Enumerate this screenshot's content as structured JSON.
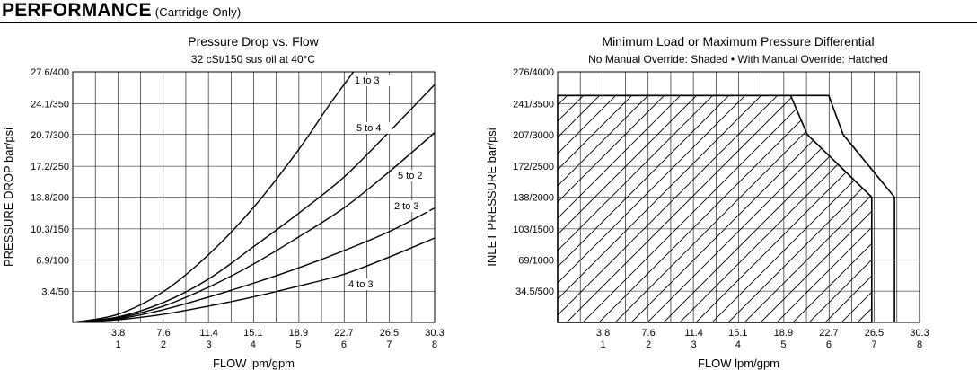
{
  "header": {
    "title": "PERFORMANCE",
    "subtitle": "(Cartridge Only)"
  },
  "chart_data": [
    {
      "type": "line",
      "title": "Pressure Drop vs. Flow",
      "subtitle": "32 cSt/150 sus oil at 40°C",
      "xlabel": "FLOW lpm/gpm",
      "ylabel": "PRESSURE DROP bar/psi",
      "x_unit": "lpm",
      "xlim": [
        0,
        30.3
      ],
      "ylim": [
        0,
        27.6
      ],
      "xticks": [
        {
          "value": 3.8,
          "top": "3.8",
          "bottom": "1"
        },
        {
          "value": 7.6,
          "top": "7.6",
          "bottom": "2"
        },
        {
          "value": 11.4,
          "top": "11.4",
          "bottom": "3"
        },
        {
          "value": 15.1,
          "top": "15.1",
          "bottom": "4"
        },
        {
          "value": 18.9,
          "top": "18.9",
          "bottom": "5"
        },
        {
          "value": 22.7,
          "top": "22.7",
          "bottom": "6"
        },
        {
          "value": 26.5,
          "top": "26.5",
          "bottom": "7"
        },
        {
          "value": 30.3,
          "top": "30.3",
          "bottom": "8"
        }
      ],
      "yticks": [
        {
          "value": 3.4,
          "label": "3.4/50"
        },
        {
          "value": 6.9,
          "label": "6.9/100"
        },
        {
          "value": 10.3,
          "label": "10.3/150"
        },
        {
          "value": 13.8,
          "label": "13.8/200"
        },
        {
          "value": 17.2,
          "label": "17.2/250"
        },
        {
          "value": 20.7,
          "label": "20.7/300"
        },
        {
          "value": 24.1,
          "label": "24.1/350"
        },
        {
          "value": 27.6,
          "label": "27.6/400"
        }
      ],
      "grid": true,
      "series": [
        {
          "name": "1 to 3",
          "x": [
            0,
            3.8,
            7.6,
            11.4,
            15.1,
            18.9,
            21.5,
            23.5
          ],
          "y": [
            0,
            0.9,
            3.4,
            7.5,
            12.6,
            19.0,
            24.0,
            27.6
          ]
        },
        {
          "name": "5 to 4",
          "x": [
            0,
            3.8,
            7.6,
            11.4,
            15.1,
            18.9,
            22.7,
            26.5,
            30.3
          ],
          "y": [
            0,
            0.6,
            2.2,
            4.8,
            8.3,
            12.0,
            16.0,
            21.0,
            26.2
          ]
        },
        {
          "name": "5 to 2",
          "x": [
            0,
            3.8,
            7.6,
            11.4,
            15.1,
            18.9,
            22.7,
            26.5,
            30.3
          ],
          "y": [
            0,
            0.5,
            1.8,
            3.9,
            6.4,
            9.4,
            12.6,
            16.6,
            20.9
          ]
        },
        {
          "name": "2 to 3",
          "x": [
            0,
            3.8,
            7.6,
            11.4,
            15.1,
            18.9,
            22.7,
            26.5,
            30.3
          ],
          "y": [
            0,
            0.4,
            1.4,
            2.8,
            4.3,
            6.0,
            7.9,
            10.0,
            12.6
          ]
        },
        {
          "name": "4 to 3",
          "x": [
            0,
            3.8,
            7.6,
            11.4,
            15.1,
            18.9,
            22.7,
            26.5,
            30.3
          ],
          "y": [
            0,
            0.3,
            0.9,
            1.8,
            2.8,
            4.0,
            5.3,
            7.2,
            9.3
          ]
        }
      ]
    },
    {
      "type": "area",
      "title": "Minimum Load or Maximum Pressure Differential",
      "subtitle": "No Manual Override: Shaded • With Manual Override: Hatched",
      "xlabel": "FLOW lpm/gpm",
      "ylabel": "INLET PRESSURE bar/psi",
      "x_unit": "lpm",
      "xlim": [
        0,
        30.3
      ],
      "ylim": [
        0,
        276
      ],
      "xticks": [
        {
          "value": 3.8,
          "top": "3.8",
          "bottom": "1"
        },
        {
          "value": 7.6,
          "top": "7.6",
          "bottom": "2"
        },
        {
          "value": 11.4,
          "top": "11.4",
          "bottom": "3"
        },
        {
          "value": 15.1,
          "top": "15.1",
          "bottom": "4"
        },
        {
          "value": 18.9,
          "top": "18.9",
          "bottom": "5"
        },
        {
          "value": 22.7,
          "top": "22.7",
          "bottom": "6"
        },
        {
          "value": 26.5,
          "top": "26.5",
          "bottom": "7"
        },
        {
          "value": 30.3,
          "top": "30.3",
          "bottom": "8"
        }
      ],
      "yticks": [
        {
          "value": 34.5,
          "label": "34.5/500"
        },
        {
          "value": 69,
          "label": "69/1000"
        },
        {
          "value": 103,
          "label": "103/1500"
        },
        {
          "value": 138,
          "label": "138/2000"
        },
        {
          "value": 172,
          "label": "172/2500"
        },
        {
          "value": 207,
          "label": "207/3000"
        },
        {
          "value": 241,
          "label": "241/3500"
        },
        {
          "value": 276,
          "label": "276/4000"
        }
      ],
      "grid": true,
      "series": [
        {
          "name": "Hatched",
          "x": [
            0,
            19.5,
            20.9,
            26.3,
            26.3
          ],
          "y": [
            250,
            250,
            207,
            138,
            0
          ]
        },
        {
          "name": "Shaded",
          "x": [
            0,
            22.7,
            23.9,
            28.2,
            28.2
          ],
          "y": [
            250,
            250,
            207,
            138,
            0
          ]
        }
      ]
    }
  ]
}
